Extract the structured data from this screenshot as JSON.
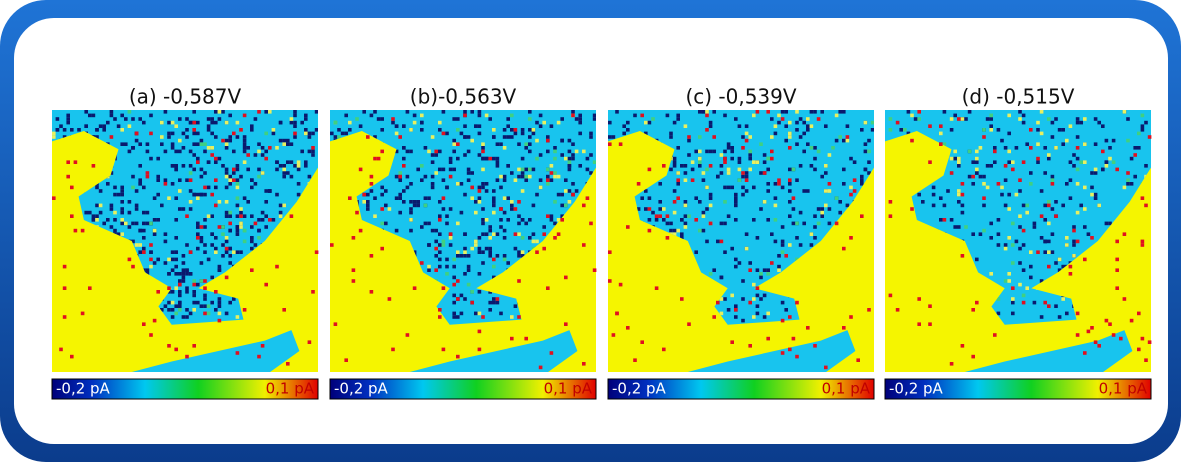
{
  "panels": [
    {
      "title": "(a) -0,587V",
      "colorbar": {
        "min_label": "-0,2 pA",
        "max_label": "0,1 pA"
      }
    },
    {
      "title": "(b)-0,563V",
      "colorbar": {
        "min_label": "-0,2 pA",
        "max_label": "0,1 pA"
      }
    },
    {
      "title": "(c) -0,539V",
      "colorbar": {
        "min_label": "-0,2 pA",
        "max_label": "0,1 pA"
      }
    },
    {
      "title": "(d) -0,515V",
      "colorbar": {
        "min_label": "-0,2 pA",
        "max_label": "0,1 pA"
      }
    }
  ]
}
